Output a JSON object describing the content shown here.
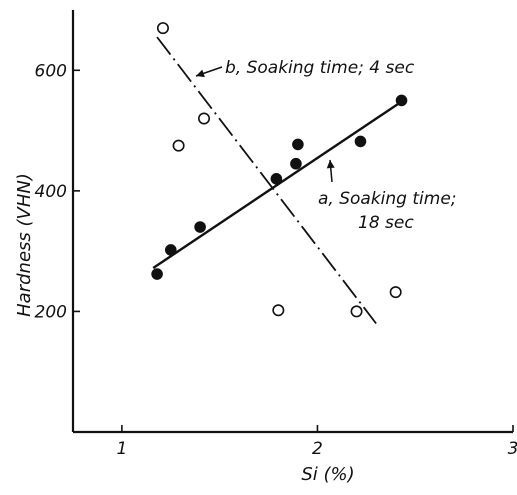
{
  "chart_data": {
    "type": "scatter",
    "xlabel": "Si   (%)",
    "ylabel": "Hardness   (VHN)",
    "xlim": [
      0.75,
      3.0
    ],
    "ylim": [
      0,
      700
    ],
    "x_ticks": [
      1,
      2,
      3
    ],
    "y_ticks": [
      200,
      400,
      600
    ],
    "grid": false,
    "series": [
      {
        "name": "a, Soaking time; 18 sec",
        "marker": "filled-circle",
        "points": [
          {
            "x": 1.18,
            "y": 262
          },
          {
            "x": 1.25,
            "y": 302
          },
          {
            "x": 1.4,
            "y": 340
          },
          {
            "x": 1.79,
            "y": 420
          },
          {
            "x": 1.89,
            "y": 445
          },
          {
            "x": 1.9,
            "y": 477
          },
          {
            "x": 2.22,
            "y": 482
          },
          {
            "x": 2.43,
            "y": 550
          }
        ],
        "fit_line": {
          "style": "solid",
          "from": {
            "x": 1.16,
            "y": 272
          },
          "to": {
            "x": 2.43,
            "y": 548
          }
        }
      },
      {
        "name": "b, Soaking time; 4 sec",
        "marker": "open-circle",
        "points": [
          {
            "x": 1.21,
            "y": 670
          },
          {
            "x": 1.29,
            "y": 475
          },
          {
            "x": 1.42,
            "y": 520
          },
          {
            "x": 1.8,
            "y": 202
          },
          {
            "x": 2.2,
            "y": 200
          },
          {
            "x": 2.4,
            "y": 232
          }
        ],
        "fit_line": {
          "style": "dash-dot",
          "from": {
            "x": 1.18,
            "y": 655
          },
          "to": {
            "x": 2.3,
            "y": 180
          }
        }
      }
    ],
    "annotations": [
      {
        "id": "label_b",
        "lines": [
          "b, Soaking time; 4 sec"
        ],
        "series": 1
      },
      {
        "id": "label_a",
        "lines": [
          "a, Soaking time;",
          "18 sec"
        ],
        "series": 0
      }
    ],
    "colors": {
      "ink": "#111111",
      "background": "#ffffff"
    }
  }
}
